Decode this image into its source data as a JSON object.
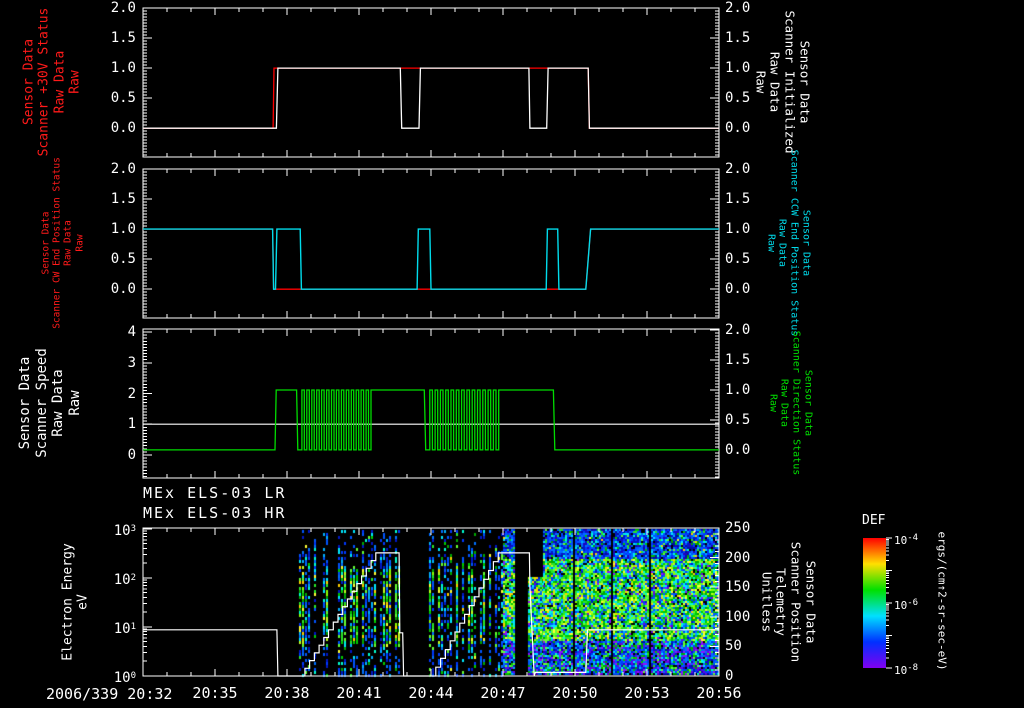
{
  "window": {
    "background": "#000000"
  },
  "titles": {
    "line1": "MEx ELS-03 LR",
    "line2": "MEx ELS-03 HR"
  },
  "x_axis": {
    "start_label": "2006/339 20:32",
    "tick_minutes": [
      3,
      6,
      9,
      12,
      15,
      18,
      21,
      24
    ],
    "tick_labels": [
      "20:35",
      "20:38",
      "20:41",
      "20:44",
      "20:47",
      "20:50",
      "20:53",
      "20:56"
    ],
    "span_minutes": 24,
    "major_every": 3,
    "minor_every": 1
  },
  "chart_data": [
    {
      "type": "line",
      "left_axis": {
        "title": "Sensor Data\nScanner +30V Status\nRaw Data\nRaw",
        "title_color": "#ff1a1a",
        "ticks": [
          0,
          0.5,
          1,
          1.5,
          2
        ],
        "tick_labels": [
          "0.0",
          "0.5",
          "1.0",
          "1.5",
          "2.0"
        ],
        "range": [
          -0.48,
          2.0
        ],
        "minor": 0.05
      },
      "right_axis": {
        "title": "Sensor Data\nScanner Initialized\nRaw Data\nRaw",
        "title_color": "#ffffff",
        "ticks": [
          0,
          0.5,
          1,
          1.5,
          2
        ],
        "tick_labels": [
          "0.0",
          "0.5",
          "1.0",
          "1.5",
          "2.0"
        ],
        "range": [
          -0.48,
          2.0
        ],
        "minor": 0.05
      },
      "series": [
        {
          "name": "scanner-30v-status",
          "color": "#ff0000",
          "axis": "left",
          "width": 1.3,
          "segments": [
            {
              "pts": [
                [
                  0,
                  0
                ],
                [
                  5.42,
                  0
                ],
                [
                  5.46,
                  1
                ],
                [
                  18.55,
                  1
                ],
                [
                  18.6,
                  0
                ],
                [
                  24,
                  0
                ]
              ]
            }
          ]
        },
        {
          "name": "scanner-initialized",
          "color": "#ffffff",
          "axis": "right",
          "width": 1.3,
          "segments": [
            {
              "pts": [
                [
                  0,
                  0
                ],
                [
                  5.56,
                  0
                ],
                [
                  5.62,
                  1
                ],
                [
                  10.72,
                  1
                ],
                [
                  10.78,
                  0
                ],
                [
                  11.5,
                  0
                ],
                [
                  11.56,
                  1
                ],
                [
                  16.08,
                  1
                ],
                [
                  16.12,
                  0
                ],
                [
                  16.82,
                  0
                ],
                [
                  16.88,
                  1
                ],
                [
                  18.55,
                  1
                ],
                [
                  18.6,
                  0
                ],
                [
                  24,
                  0
                ]
              ]
            }
          ]
        }
      ]
    },
    {
      "type": "line",
      "left_axis": {
        "title": "Sensor Data\nScanner CW End Position Status\nRaw Data\nRaw",
        "title_color": "#ff1a1a",
        "ticks": [
          0,
          0.5,
          1,
          1.5,
          2
        ],
        "tick_labels": [
          "0.0",
          "0.5",
          "1.0",
          "1.5",
          "2.0"
        ],
        "range": [
          -0.48,
          2.0
        ],
        "minor": 0.05
      },
      "right_axis": {
        "title": "Sensor Data\nScanner CCW End Position Status\nRaw Data\nRaw",
        "title_color": "#00dcec",
        "ticks": [
          0,
          0.5,
          1,
          1.5,
          2
        ],
        "tick_labels": [
          "0.0",
          "0.5",
          "1.0",
          "1.5",
          "2.0"
        ],
        "range": [
          -0.48,
          2.0
        ],
        "minor": 0.05
      },
      "series": [
        {
          "name": "scanner-cw-end-position",
          "color": "#ff0000",
          "axis": "left",
          "width": 1.3,
          "segments": [
            {
              "pts": [
                [
                  0,
                  1
                ],
                [
                  5.4,
                  1
                ],
                [
                  5.44,
                  0
                ],
                [
                  18.45,
                  0
                ],
                [
                  18.65,
                  1
                ],
                [
                  24,
                  1
                ]
              ]
            }
          ]
        },
        {
          "name": "scanner-ccw-end-position",
          "color": "#00dcec",
          "axis": "right",
          "width": 1.4,
          "segments": [
            {
              "pts": [
                [
                  0,
                  1
                ],
                [
                  5.4,
                  1
                ],
                [
                  5.44,
                  0
                ],
                [
                  5.52,
                  0
                ],
                [
                  5.58,
                  1
                ],
                [
                  6.55,
                  1
                ],
                [
                  6.6,
                  0
                ],
                [
                  11.42,
                  0
                ],
                [
                  11.47,
                  1
                ],
                [
                  11.95,
                  1
                ],
                [
                  12.0,
                  0
                ],
                [
                  16.8,
                  0
                ],
                [
                  16.85,
                  1
                ],
                [
                  17.28,
                  1
                ],
                [
                  17.33,
                  0
                ],
                [
                  18.45,
                  0
                ],
                [
                  18.65,
                  1
                ],
                [
                  24,
                  1
                ]
              ]
            }
          ]
        }
      ]
    },
    {
      "type": "line",
      "left_axis": {
        "title": "Sensor Data\nScanner Speed\nRaw Data\nRaw",
        "title_color": "#ffffff",
        "ticks": [
          0,
          1,
          2,
          3,
          4
        ],
        "tick_labels": [
          "0",
          "1",
          "2",
          "3",
          "4"
        ],
        "range": [
          -0.75,
          4.1
        ],
        "minor": 0.1
      },
      "right_axis": {
        "title": "Sensor Data\nScanner Direction Status\nRaw Data\nRaw",
        "title_color": "#00e000",
        "ticks": [
          0,
          0.5,
          1,
          1.5,
          2
        ],
        "tick_labels": [
          "0.0",
          "0.5",
          "1.0",
          "1.5",
          "2.0"
        ],
        "range": [
          -0.47,
          2.02
        ],
        "minor": 0.05
      },
      "series": [
        {
          "name": "scanner-speed",
          "color": "#ffffff",
          "axis": "left",
          "width": 1.2,
          "segments": [
            {
              "pts": [
                [
                  0,
                  1
                ],
                [
                  24,
                  1
                ]
              ]
            }
          ]
        },
        {
          "name": "scanner-direction-status",
          "color": "#00dc00",
          "axis": "right",
          "width": 1.3,
          "segments": [
            {
              "pts": [
                [
                  0,
                  0
                ],
                [
                  5.5,
                  0
                ],
                [
                  5.55,
                  1
                ],
                [
                  6.4,
                  1
                ],
                [
                  6.45,
                  0
                ],
                [
                  6.62,
                  0
                ]
              ]
            },
            {
              "osc": [
                6.62,
                9.5,
                14
              ]
            },
            {
              "pts": [
                [
                  9.5,
                  1
                ],
                [
                  11.72,
                  1
                ],
                [
                  11.78,
                  0
                ],
                [
                  11.95,
                  0
                ]
              ]
            },
            {
              "osc": [
                11.95,
                14.82,
                13
              ]
            },
            {
              "pts": [
                [
                  14.82,
                  1
                ],
                [
                  17.1,
                  1
                ],
                [
                  17.16,
                  0
                ],
                [
                  24,
                  0
                ]
              ]
            }
          ]
        }
      ]
    },
    {
      "type": "spectrogram",
      "left_axis": {
        "title": "Electron Energy\neV",
        "title_color": "#ffffff",
        "log": true,
        "decades": [
          0,
          1,
          2,
          3
        ],
        "range_log": [
          0,
          3.02
        ]
      },
      "right_axis": {
        "title": "Sensor Data\nScanner Position\nTelemetry\nUnitless",
        "title_color": "#ffffff",
        "ticks": [
          0,
          50,
          100,
          150,
          200,
          250
        ],
        "tick_labels": [
          "0",
          "50",
          "100",
          "150",
          "200",
          "250"
        ],
        "range": [
          0,
          250
        ],
        "minor": 10
      },
      "regions": [
        {
          "t0": 6.5,
          "t1": 10.7,
          "style": "columns"
        },
        {
          "t0": 11.9,
          "t1": 15.0,
          "style": "columns"
        },
        {
          "t0": 15.0,
          "t1": 15.45,
          "style": "dense"
        },
        {
          "t0": 16.05,
          "t1": 16.67,
          "style": "dense",
          "emax_log": 2.05
        },
        {
          "t0": 16.67,
          "t1": 24.0,
          "style": "dense",
          "gaps": [
            17.9,
            19.5,
            21.1
          ]
        }
      ],
      "white_trace": {
        "name": "scanner-position-telemetry",
        "color": "#ffffff",
        "axis": "right",
        "width": 1.2,
        "segments": [
          {
            "pts": [
              [
                0,
                78
              ],
              [
                5.58,
                78
              ],
              [
                5.62,
                0
              ],
              [
                6.5,
                0
              ]
            ]
          },
          {
            "ramp": [
              6.55,
              0,
              9.7,
              208
            ],
            "steps": 16
          },
          {
            "pts": [
              [
                9.7,
                208
              ],
              [
                10.67,
                208
              ],
              [
                10.7,
                73
              ],
              [
                10.82,
                73
              ],
              [
                10.86,
                0
              ],
              [
                11.98,
                0
              ]
            ]
          },
          {
            "ramp": [
              12.0,
              0,
              14.8,
              208
            ],
            "steps": 14
          },
          {
            "pts": [
              [
                14.8,
                208
              ],
              [
                16.1,
                208
              ],
              [
                16.12,
                150
              ],
              [
                16.3,
                0
              ],
              [
                16.35,
                6
              ],
              [
                18.45,
                6
              ],
              [
                18.52,
                78
              ],
              [
                24,
                78
              ]
            ]
          }
        ]
      },
      "colorbar": {
        "title": "DEF",
        "unit": "ergs/(cm↑2-sr-sec-eV)",
        "tick_exponents": [
          -4,
          -6,
          -8
        ],
        "colors": [
          "#ff0000",
          "#ffe000",
          "#00e000",
          "#00e0ff",
          "#0030ff",
          "#8000f0"
        ]
      }
    }
  ]
}
